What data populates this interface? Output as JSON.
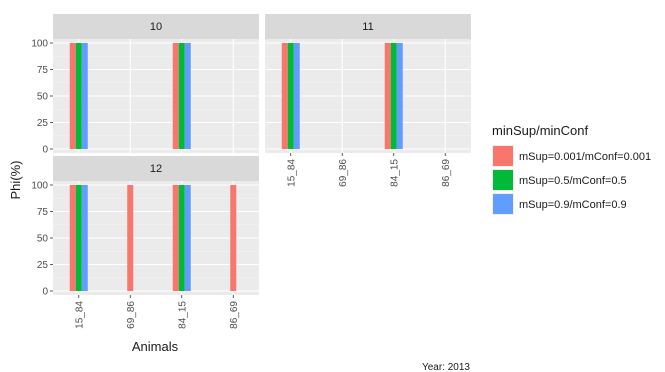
{
  "chart_data": {
    "type": "bar",
    "xlabel": "Animals",
    "ylabel": "Phi(%)",
    "ylim": [
      0,
      100
    ],
    "yticks": [
      0,
      25,
      50,
      75,
      100
    ],
    "categories": [
      "15_84",
      "69_86",
      "84_15",
      "86_69"
    ],
    "caption": "Year: 2013",
    "grid": true,
    "legend": {
      "title": "minSup/minConf",
      "position": "right"
    },
    "series": [
      {
        "name": "mSup=0.001/mConf=0.001",
        "color": "#F8766D"
      },
      {
        "name": "mSup=0.5/mConf=0.5",
        "color": "#00BA38"
      },
      {
        "name": "mSup=0.9/mConf=0.9",
        "color": "#619CFF"
      }
    ],
    "panels": [
      {
        "label": "10",
        "values": [
          [
            100,
            100,
            100
          ],
          [
            null,
            null,
            null
          ],
          [
            100,
            100,
            100
          ],
          [
            null,
            null,
            null
          ]
        ]
      },
      {
        "label": "11",
        "values": [
          [
            100,
            100,
            100
          ],
          [
            null,
            null,
            null
          ],
          [
            100,
            100,
            100
          ],
          [
            null,
            null,
            null
          ]
        ]
      },
      {
        "label": "12",
        "values": [
          [
            100,
            100,
            100
          ],
          [
            100,
            null,
            null
          ],
          [
            100,
            100,
            100
          ],
          [
            100,
            null,
            null
          ]
        ]
      }
    ]
  }
}
